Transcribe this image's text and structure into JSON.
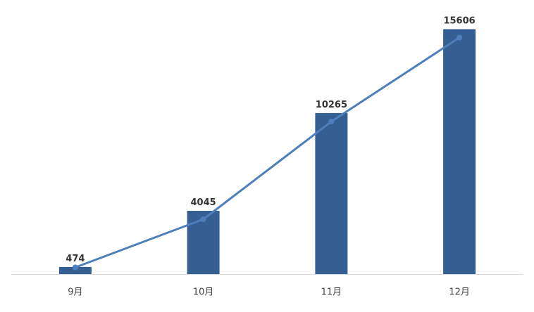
{
  "colors": {
    "bar": "#355E93",
    "line": "#4F7FBA",
    "axis": "#D9D9D9",
    "label": "#333333"
  },
  "chart_data": {
    "type": "bar",
    "categories": [
      "9月",
      "10月",
      "11月",
      "12月"
    ],
    "values": [
      474,
      4045,
      10265,
      15606
    ],
    "overlay_line": [
      474,
      4045,
      10265,
      15606
    ],
    "data_labels": [
      "474",
      "4045",
      "10265",
      "15606"
    ],
    "title": "",
    "xlabel": "",
    "ylabel": "",
    "ylim": [
      0,
      15606
    ],
    "grid": false,
    "legend": "none"
  }
}
